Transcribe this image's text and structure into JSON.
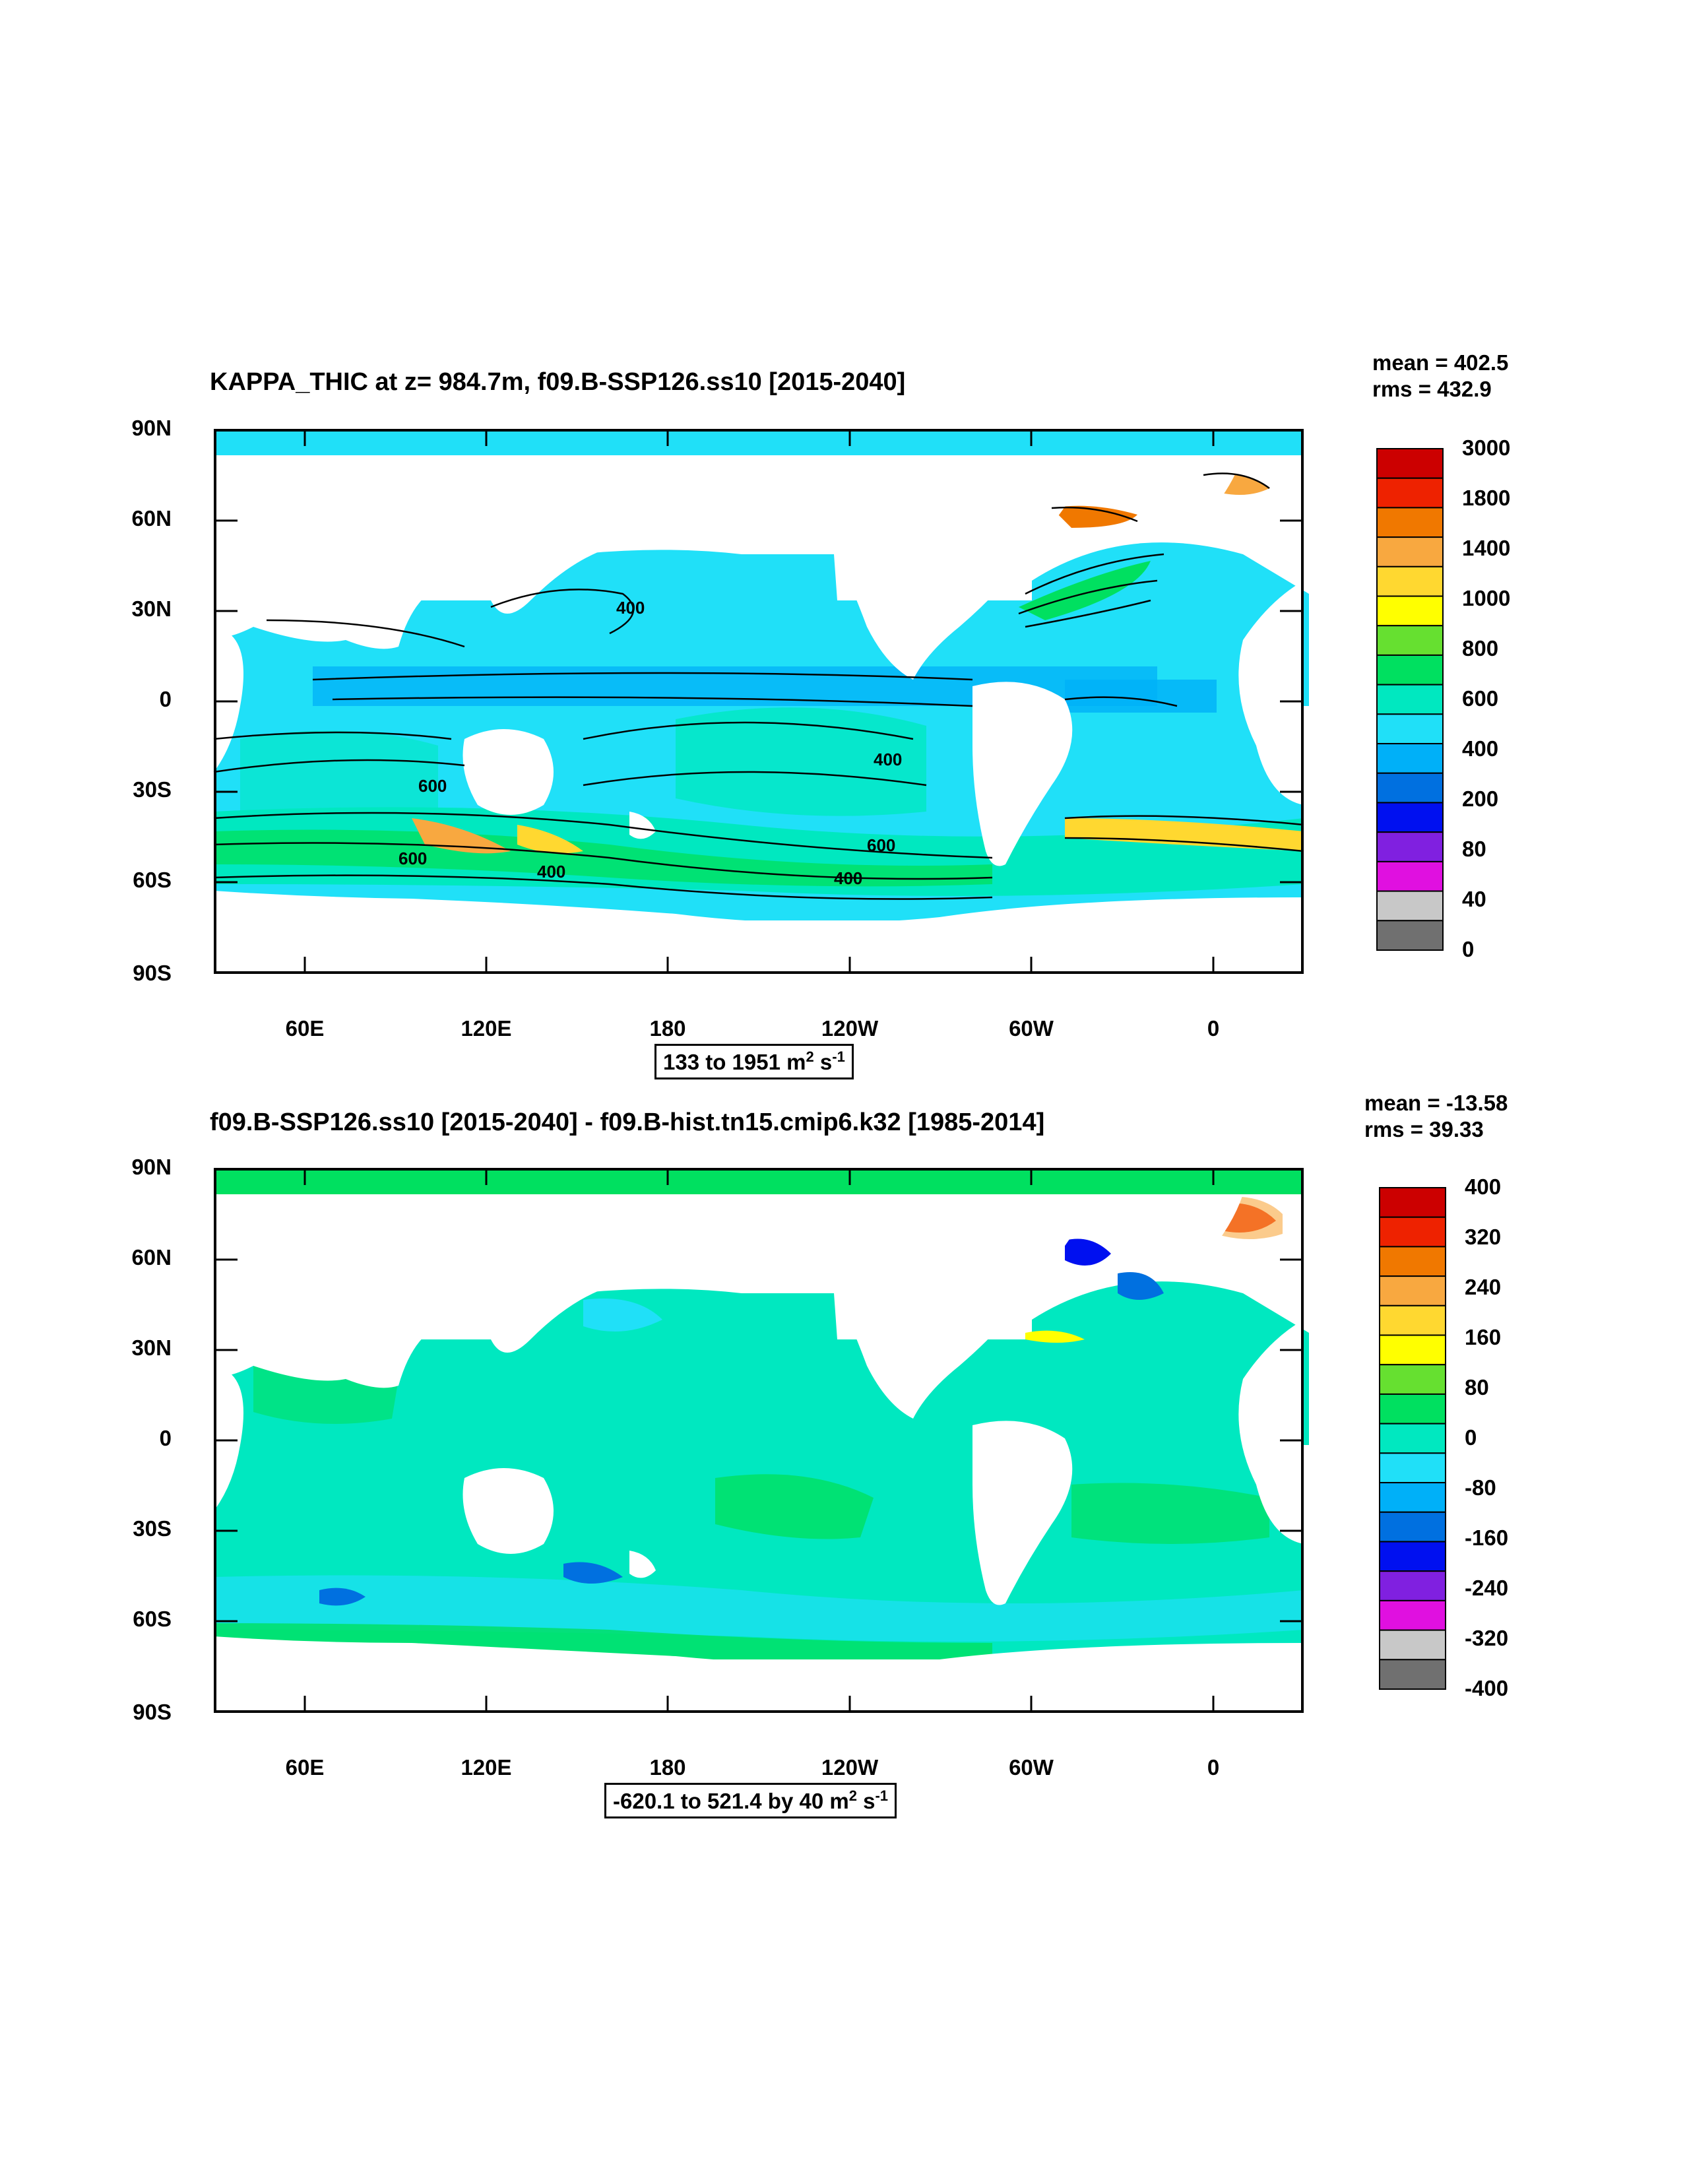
{
  "panels": [
    {
      "title": "KAPPA_THIC at z= 984.7m, f09.B-SSP126.ss10 [2015-2040]",
      "mean": "mean = 402.5",
      "rms": "rms = 432.9",
      "range_text": "133 to 1951 m",
      "range_unit_tail": " s",
      "lat_labels": [
        "90N",
        "60N",
        "30N",
        "0",
        "30S",
        "60S",
        "90S"
      ],
      "lon_labels": [
        "60E",
        "120E",
        "180",
        "120W",
        "60W",
        "0"
      ],
      "contour_labels": [
        "400",
        "400",
        "600",
        "600",
        "600",
        "400",
        "400"
      ],
      "colorbar_labels": [
        "3000",
        "1800",
        "1400",
        "1000",
        "800",
        "600",
        "400",
        "200",
        "80",
        "40",
        "0"
      ],
      "colorbar_colors": [
        "#cc0000",
        "#ee2200",
        "#f07800",
        "#f8a840",
        "#ffd830",
        "#ffff00",
        "#66e030",
        "#00e060",
        "#00e8c0",
        "#20e0f8",
        "#00b0f8",
        "#0070e0",
        "#0010f0",
        "#8020e0",
        "#e010e0",
        "#c8c8c8",
        "#707070"
      ]
    },
    {
      "title": "f09.B-SSP126.ss10 [2015-2040] - f09.B-hist.tn15.cmip6.k32 [1985-2014]",
      "mean": "mean = -13.58",
      "rms": "rms = 39.33",
      "range_text": "-620.1 to 521.4 by 40 m",
      "range_unit_tail": " s",
      "lat_labels": [
        "90N",
        "60N",
        "30N",
        "0",
        "30S",
        "60S",
        "90S"
      ],
      "lon_labels": [
        "60E",
        "120E",
        "180",
        "120W",
        "60W",
        "0"
      ],
      "colorbar_labels": [
        "400",
        "320",
        "240",
        "160",
        "80",
        "0",
        "-80",
        "-160",
        "-240",
        "-320",
        "-400"
      ],
      "colorbar_colors": [
        "#cc0000",
        "#ee2200",
        "#f07800",
        "#f8a840",
        "#ffd830",
        "#ffff00",
        "#66e030",
        "#00e060",
        "#00e8c0",
        "#20e0f8",
        "#00b0f8",
        "#0070e0",
        "#0010f0",
        "#8020e0",
        "#e010e0",
        "#c8c8c8",
        "#707070"
      ]
    }
  ],
  "colors": {
    "land": "#ffffff",
    "frame": "#000000"
  }
}
